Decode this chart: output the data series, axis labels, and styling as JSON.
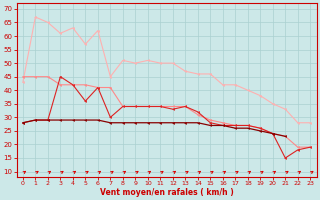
{
  "x": [
    0,
    1,
    2,
    3,
    4,
    5,
    6,
    7,
    8,
    9,
    10,
    11,
    12,
    13,
    14,
    15,
    16,
    17,
    18,
    19,
    20,
    21,
    22,
    23
  ],
  "line1": [
    43,
    67,
    65,
    61,
    63,
    57,
    62,
    45,
    51,
    50,
    51,
    50,
    50,
    47,
    46,
    46,
    42,
    42,
    40,
    38,
    35,
    33,
    28,
    28
  ],
  "line2": [
    45,
    45,
    45,
    42,
    42,
    42,
    41,
    41,
    34,
    34,
    34,
    34,
    34,
    34,
    31,
    29,
    28,
    27,
    27,
    26,
    24,
    23,
    19,
    19
  ],
  "line3": [
    28,
    29,
    29,
    45,
    42,
    36,
    41,
    30,
    34,
    34,
    34,
    34,
    33,
    34,
    32,
    28,
    27,
    27,
    27,
    26,
    24,
    15,
    18,
    19
  ],
  "line4": [
    28,
    29,
    29,
    29,
    29,
    29,
    29,
    28,
    28,
    28,
    28,
    28,
    28,
    28,
    28,
    27,
    27,
    26,
    26,
    25,
    24,
    23,
    null,
    null
  ],
  "bg_color": "#cce8e8",
  "grid_color": "#aad0d0",
  "line1_color": "#ffb0b0",
  "line2_color": "#ff8888",
  "line3_color": "#dd2222",
  "line4_color": "#880000",
  "arrow_color": "#dd0000",
  "xlabel": "Vent moyen/en rafales ( km/h )",
  "ylim": [
    8,
    72
  ],
  "xlim": [
    -0.5,
    23.5
  ],
  "yticks": [
    10,
    15,
    20,
    25,
    30,
    35,
    40,
    45,
    50,
    55,
    60,
    65,
    70
  ],
  "xticks": [
    0,
    1,
    2,
    3,
    4,
    5,
    6,
    7,
    8,
    9,
    10,
    11,
    12,
    13,
    14,
    15,
    16,
    17,
    18,
    19,
    20,
    21,
    22,
    23
  ]
}
